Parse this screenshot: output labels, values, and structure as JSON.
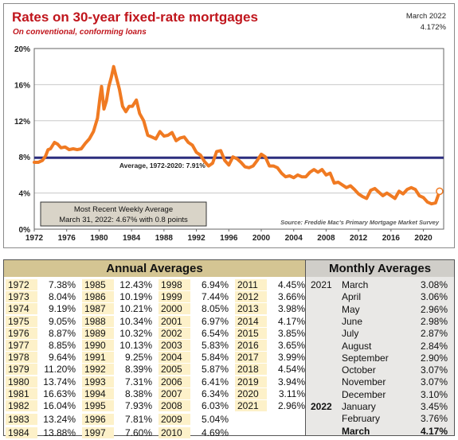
{
  "chart": {
    "title": "Rates on 30-year fixed-rate mortgages",
    "subtitle": "On conventional, conforming loans",
    "latest_label": "March 2022",
    "latest_value": "4.172%",
    "average_label": "Average, 1972-2020: 7.91%",
    "recent_box_line1": "Most Recent Weekly Average",
    "recent_box_line2": "March 31, 2022: 4.67% with 0.8 points",
    "source": "Source: Freddie Mac's Primary Mortgage Market Survey",
    "colors": {
      "title": "#c0151c",
      "series": "#f07a22",
      "average_line": "#2c2d7e",
      "box": "#d9d4c8"
    }
  },
  "chart_data": {
    "type": "line",
    "title": "Rates on 30-year fixed-rate mortgages",
    "subtitle": "On conventional, conforming loans",
    "xlabel": "",
    "ylabel": "",
    "xlim": [
      1972,
      2022.5
    ],
    "ylim": [
      0,
      20
    ],
    "x_ticks": [
      1972,
      1976,
      1980,
      1984,
      1988,
      1992,
      1996,
      2000,
      2004,
      2008,
      2012,
      2016,
      2020
    ],
    "y_ticks": [
      "0%",
      "4%",
      "8%",
      "12%",
      "16%",
      "20%"
    ],
    "y_tick_values": [
      0,
      4,
      8,
      12,
      16,
      20
    ],
    "grid": true,
    "reference_line": {
      "label": "Average, 1972-2020: 7.91%",
      "value": 7.91
    },
    "series": [
      {
        "x": [
          1972,
          1972.5,
          1973,
          1973.4,
          1973.7,
          1974,
          1974.5,
          1974.9,
          1975.3,
          1975.8,
          1976.3,
          1976.8,
          1977.3,
          1977.8,
          1978.3,
          1978.8,
          1979.3,
          1979.8,
          1980.1,
          1980.3,
          1980.6,
          1980.9,
          1981.2,
          1981.5,
          1981.8,
          1982.1,
          1982.5,
          1982.9,
          1983.3,
          1983.7,
          1984.1,
          1984.6,
          1985.0,
          1985.5,
          1986.0,
          1986.5,
          1987.0,
          1987.5,
          1988.0,
          1988.5,
          1989.0,
          1989.5,
          1990.0,
          1990.5,
          1991.0,
          1991.5,
          1992.0,
          1992.5,
          1993.0,
          1993.5,
          1994.0,
          1994.5,
          1995.0,
          1995.5,
          1996.0,
          1996.5,
          1997.0,
          1997.5,
          1998.0,
          1998.5,
          1999.0,
          1999.5,
          2000.0,
          2000.5,
          2001.0,
          2001.5,
          2002.0,
          2002.5,
          2003.0,
          2003.5,
          2004.0,
          2004.5,
          2005.0,
          2005.5,
          2006.0,
          2006.5,
          2007.0,
          2007.5,
          2008.0,
          2008.5,
          2009.0,
          2009.5,
          2010.0,
          2010.5,
          2011.0,
          2011.5,
          2012.0,
          2012.5,
          2013.0,
          2013.5,
          2014.0,
          2014.5,
          2015.0,
          2015.5,
          2016.0,
          2016.5,
          2017.0,
          2017.5,
          2018.0,
          2018.5,
          2019.0,
          2019.5,
          2020.0,
          2020.5,
          2021.0,
          2021.5,
          2022.0
        ],
        "y": [
          7.4,
          7.4,
          7.6,
          8.1,
          8.8,
          8.9,
          9.6,
          9.4,
          9.0,
          9.1,
          8.8,
          8.9,
          8.8,
          8.9,
          9.5,
          10.0,
          10.8,
          12.3,
          14.5,
          15.8,
          13.3,
          14.2,
          15.8,
          16.8,
          18.0,
          16.9,
          15.5,
          13.6,
          13.0,
          13.6,
          13.6,
          14.3,
          12.8,
          12.0,
          10.4,
          10.2,
          10.0,
          10.8,
          10.3,
          10.4,
          10.7,
          9.8,
          10.1,
          10.2,
          9.6,
          9.3,
          8.5,
          8.2,
          7.5,
          7.0,
          7.3,
          8.6,
          8.7,
          7.6,
          7.1,
          8.0,
          7.8,
          7.4,
          6.9,
          6.8,
          7.0,
          7.6,
          8.3,
          8.0,
          7.0,
          7.0,
          6.8,
          6.2,
          5.8,
          5.9,
          5.7,
          6.0,
          5.8,
          5.8,
          6.3,
          6.6,
          6.3,
          6.6,
          6.0,
          6.2,
          5.1,
          5.2,
          4.9,
          4.6,
          4.8,
          4.4,
          3.9,
          3.6,
          3.4,
          4.3,
          4.5,
          4.1,
          3.7,
          4.0,
          3.7,
          3.4,
          4.2,
          3.9,
          4.4,
          4.6,
          4.4,
          3.7,
          3.5,
          3.0,
          2.8,
          2.9,
          4.2
        ]
      }
    ],
    "annual_averages": [
      [
        1972,
        "7.38%"
      ],
      [
        1973,
        "8.04%"
      ],
      [
        1974,
        "9.19%"
      ],
      [
        1975,
        "9.05%"
      ],
      [
        1976,
        "8.87%"
      ],
      [
        1977,
        "8.85%"
      ],
      [
        1978,
        "9.64%"
      ],
      [
        1979,
        "11.20%"
      ],
      [
        1980,
        "13.74%"
      ],
      [
        1981,
        "16.63%"
      ],
      [
        1982,
        "16.04%"
      ],
      [
        1983,
        "13.24%"
      ],
      [
        1984,
        "13.88%"
      ],
      [
        1985,
        "12.43%"
      ],
      [
        1986,
        "10.19%"
      ],
      [
        1987,
        "10.21%"
      ],
      [
        1988,
        "10.34%"
      ],
      [
        1989,
        "10.32%"
      ],
      [
        1990,
        "10.13%"
      ],
      [
        1991,
        "9.25%"
      ],
      [
        1992,
        "8.39%"
      ],
      [
        1993,
        "7.31%"
      ],
      [
        1994,
        "8.38%"
      ],
      [
        1995,
        "7.93%"
      ],
      [
        1996,
        "7.81%"
      ],
      [
        1997,
        "7.60%"
      ],
      [
        1998,
        "6.94%"
      ],
      [
        1999,
        "7.44%"
      ],
      [
        2000,
        "8.05%"
      ],
      [
        2001,
        "6.97%"
      ],
      [
        2002,
        "6.54%"
      ],
      [
        2003,
        "5.83%"
      ],
      [
        2004,
        "5.84%"
      ],
      [
        2005,
        "5.87%"
      ],
      [
        2006,
        "6.41%"
      ],
      [
        2007,
        "6.34%"
      ],
      [
        2008,
        "6.03%"
      ],
      [
        2009,
        "5.04%"
      ],
      [
        2010,
        "4.69%"
      ],
      [
        2011,
        "4.45%"
      ],
      [
        2012,
        "3.66%"
      ],
      [
        2013,
        "3.98%"
      ],
      [
        2014,
        "4.17%"
      ],
      [
        2015,
        "3.85%"
      ],
      [
        2016,
        "3.65%"
      ],
      [
        2017,
        "3.99%"
      ],
      [
        2018,
        "4.54%"
      ],
      [
        2019,
        "3.94%"
      ],
      [
        2020,
        "3.11%"
      ],
      [
        2021,
        "2.96%"
      ]
    ],
    "monthly_averages": [
      {
        "year": "2021",
        "month": "March",
        "value": "3.08%"
      },
      {
        "year": "",
        "month": "April",
        "value": "3.06%"
      },
      {
        "year": "",
        "month": "May",
        "value": "2.96%"
      },
      {
        "year": "",
        "month": "June",
        "value": "2.98%"
      },
      {
        "year": "",
        "month": "July",
        "value": "2.87%"
      },
      {
        "year": "",
        "month": "August",
        "value": "2.84%"
      },
      {
        "year": "",
        "month": "September",
        "value": "2.90%"
      },
      {
        "year": "",
        "month": "October",
        "value": "3.07%"
      },
      {
        "year": "",
        "month": "November",
        "value": "3.07%"
      },
      {
        "year": "",
        "month": "December",
        "value": "3.10%"
      },
      {
        "year": "2022",
        "month": "January",
        "value": "3.45%"
      },
      {
        "year": "",
        "month": "February",
        "value": "3.76%"
      },
      {
        "year": "",
        "month": "March",
        "value": "4.17%"
      }
    ]
  },
  "tables": {
    "annual_header": "Annual Averages",
    "monthly_header": "Monthly Averages"
  }
}
